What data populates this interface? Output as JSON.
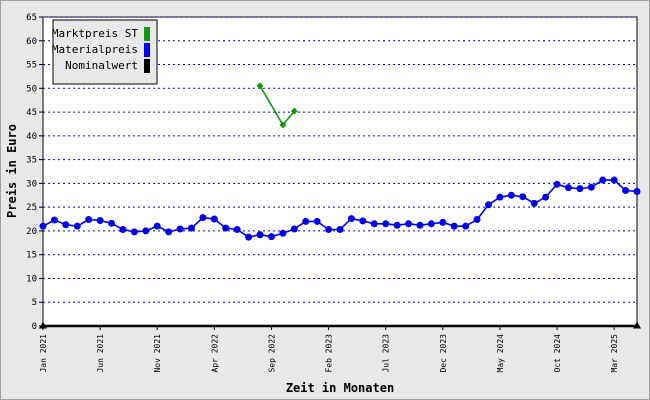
{
  "chart_data": {
    "type": "line",
    "xlabel": "Zeit in Monaten",
    "ylabel": "Preis in Euro",
    "ylim": [
      0,
      65
    ],
    "yticks": [
      0,
      5,
      10,
      15,
      20,
      25,
      30,
      35,
      40,
      45,
      50,
      55,
      60,
      65
    ],
    "x_tick_labels": [
      "Jan 2021",
      "Jun 2021",
      "Nov 2021",
      "Apr 2022",
      "Sep 2022",
      "Feb 2023",
      "Jul 2023",
      "Dec 2023",
      "May 2024",
      "Oct 2024",
      "Mar 2025"
    ],
    "x_tick_indices": [
      0,
      5,
      10,
      15,
      20,
      25,
      30,
      35,
      40,
      45,
      50
    ],
    "x_count": 53,
    "grid": true,
    "legend_position": "top-left",
    "series": [
      {
        "name": "Marktpreis ST",
        "color": "#119911",
        "marker": "diamond",
        "points": [
          [
            19,
            50.5
          ],
          [
            21,
            42.3
          ],
          [
            22,
            45.2
          ]
        ]
      },
      {
        "name": "Materialpreis",
        "color": "#0000ee",
        "marker": "circle",
        "values": [
          21.0,
          22.3,
          21.3,
          21.0,
          22.4,
          22.2,
          21.6,
          20.3,
          19.8,
          20.0,
          21.0,
          19.8,
          20.4,
          20.6,
          22.8,
          22.5,
          20.6,
          20.3,
          18.7,
          19.2,
          18.8,
          19.5,
          20.4,
          22.0,
          22.0,
          20.3,
          20.3,
          22.6,
          22.1,
          21.5,
          21.5,
          21.2,
          21.5,
          21.2,
          21.5,
          21.8,
          21.0,
          21.0,
          22.4,
          25.5,
          27.1,
          27.5,
          27.2,
          25.8,
          27.1,
          29.8,
          29.1,
          28.9,
          29.2,
          30.7,
          30.7,
          28.5,
          28.3
        ]
      },
      {
        "name": "Nominalwert",
        "color": "#000000",
        "marker": "triangle",
        "value": 0
      }
    ]
  }
}
